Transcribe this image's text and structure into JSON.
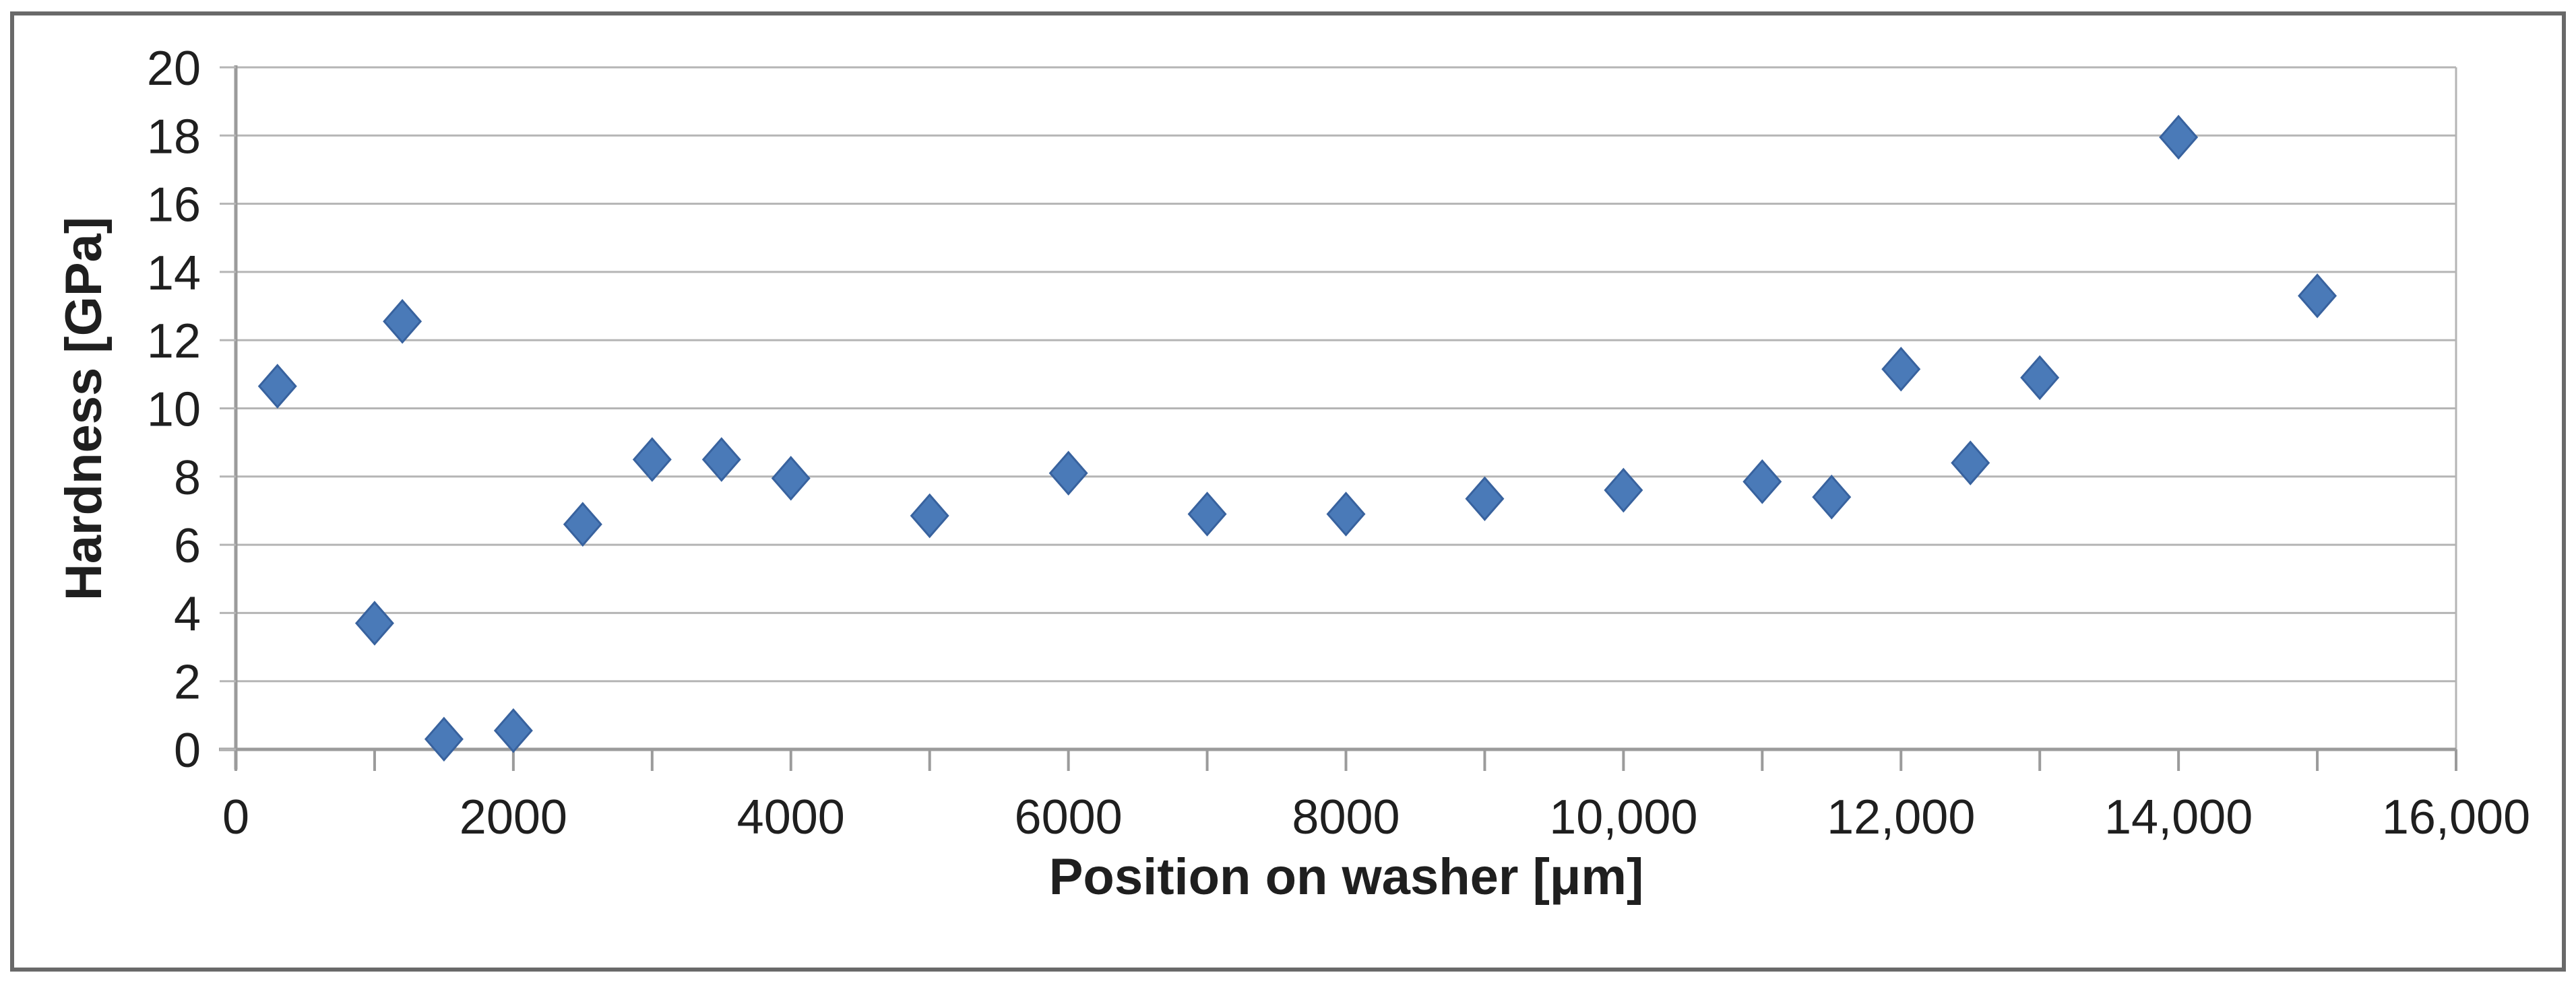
{
  "chart_data": {
    "type": "scatter",
    "title": "",
    "xlabel": "Position on washer [μm]",
    "ylabel": "Hardness [GPa]",
    "xlim": [
      0,
      16000
    ],
    "ylim": [
      0,
      20
    ],
    "grid": "horizontal",
    "legend_position": "none",
    "marker": "diamond",
    "x_major_tick_interval": 2000,
    "x_minor_tick_interval": 1000,
    "y_tick_interval": 2,
    "x_tick_labels": [
      "0",
      "2000",
      "4000",
      "6000",
      "8000",
      "10,000",
      "12,000",
      "14,000",
      "16,000"
    ],
    "y_tick_labels": [
      "0",
      "2",
      "4",
      "6",
      "8",
      "10",
      "12",
      "14",
      "16",
      "18",
      "20"
    ],
    "series": [
      {
        "name": "Hardness",
        "points": [
          [
            300,
            10.65
          ],
          [
            1000,
            3.7
          ],
          [
            1200,
            12.55
          ],
          [
            1500,
            0.3
          ],
          [
            2000,
            0.55
          ],
          [
            2500,
            6.6
          ],
          [
            3000,
            8.5
          ],
          [
            3500,
            8.5
          ],
          [
            4000,
            7.95
          ],
          [
            5000,
            6.85
          ],
          [
            6000,
            8.1
          ],
          [
            7000,
            6.9
          ],
          [
            8000,
            6.9
          ],
          [
            9000,
            7.35
          ],
          [
            10000,
            7.6
          ],
          [
            11000,
            7.85
          ],
          [
            11500,
            7.4
          ],
          [
            12000,
            11.15
          ],
          [
            12500,
            8.4
          ],
          [
            13000,
            10.9
          ],
          [
            14000,
            17.95
          ],
          [
            15000,
            13.3
          ]
        ]
      }
    ]
  },
  "colors": {
    "marker_fill": "#4a7ab8",
    "marker_stroke": "#38629e",
    "gridline": "#b5b5b5",
    "axis_line": "#9b9b9b",
    "text": "#1f1f1f",
    "frame_border": "#696969",
    "background": "#ffffff"
  }
}
